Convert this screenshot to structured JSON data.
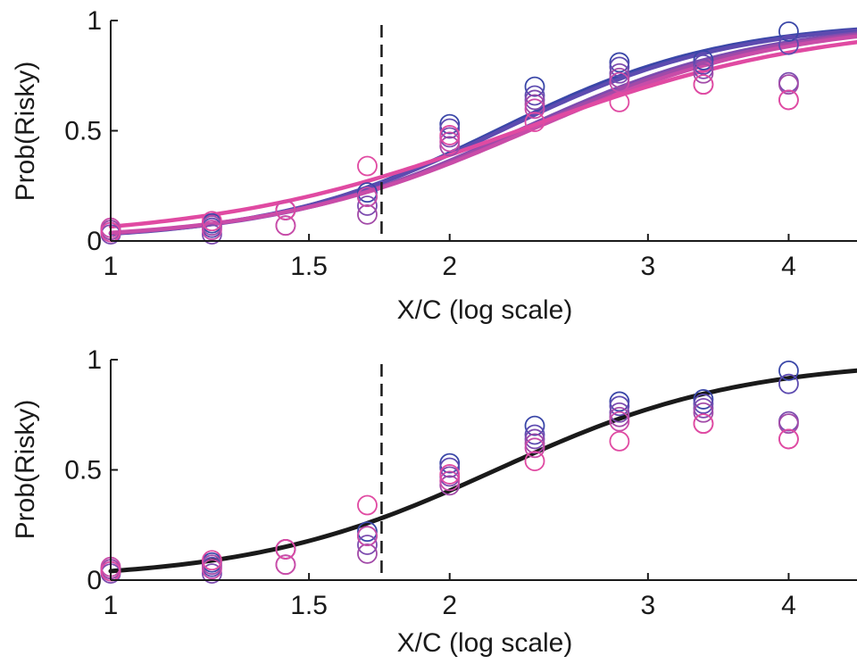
{
  "chart_data": [
    {
      "type": "line",
      "xscale": "log",
      "xlabel": "X/C (log scale)",
      "ylabel": "Prob(Risky)",
      "xlim": [
        1,
        4.6
      ],
      "ylim": [
        0,
        1
      ],
      "xticks": [
        1,
        1.5,
        2,
        3,
        4
      ],
      "xtick_labels": [
        "1",
        "1.5",
        "2",
        "3",
        "4"
      ],
      "yticks": [
        0,
        0.5,
        1
      ],
      "ytick_labels": [
        "0",
        "0.5",
        "1"
      ],
      "reference_line_x": 1.74,
      "x": [
        1,
        1.23,
        1.43,
        1.69,
        2,
        2.38,
        2.83,
        3.36,
        4
      ],
      "series": [
        {
          "color": "#3a47a8",
          "y": [
            0.05,
            0.08,
            0.14,
            0.22,
            0.53,
            0.7,
            0.81,
            0.82,
            0.95
          ],
          "fit": {
            "mu": 2.2,
            "beta": 4.3
          }
        },
        {
          "color": "#5d4bb0",
          "y": [
            0.04,
            0.06,
            0.14,
            0.2,
            0.51,
            0.66,
            0.79,
            0.8,
            0.89
          ],
          "fit": {
            "mu": 2.22,
            "beta": 4.2
          }
        },
        {
          "color": "#7d4caf",
          "y": [
            0.03,
            0.03,
            0.14,
            0.16,
            0.47,
            0.64,
            0.76,
            0.78,
            0.72
          ],
          "fit": {
            "mu": 2.3,
            "beta": 4.0
          }
        },
        {
          "color": "#a24aa8",
          "y": [
            0.05,
            0.07,
            0.07,
            0.12,
            0.43,
            0.62,
            0.74,
            0.76,
            0.71
          ],
          "fit": {
            "mu": 2.32,
            "beta": 3.9
          }
        },
        {
          "color": "#c94ca8",
          "y": [
            0.06,
            0.05,
            0.07,
            0.2,
            0.45,
            0.6,
            0.72,
            0.71,
            0.64
          ],
          "fit": {
            "mu": 2.35,
            "beta": 3.8
          }
        },
        {
          "color": "#e04aa2",
          "y": [
            0.04,
            0.09,
            0.14,
            0.34,
            0.48,
            0.54,
            0.63,
            0.71,
            0.64
          ],
          "fit": {
            "mu": 2.3,
            "beta": 3.2
          }
        }
      ]
    },
    {
      "type": "line",
      "xscale": "log",
      "xlabel": "X/C (log scale)",
      "ylabel": "Prob(Risky)",
      "xlim": [
        1,
        4.6
      ],
      "ylim": [
        0,
        1
      ],
      "xticks": [
        1,
        1.5,
        2,
        3,
        4
      ],
      "xtick_labels": [
        "1",
        "1.5",
        "2",
        "3",
        "4"
      ],
      "yticks": [
        0,
        0.5,
        1
      ],
      "ytick_labels": [
        "0",
        "0.5",
        "1"
      ],
      "reference_line_x": 1.74,
      "x": [
        1,
        1.23,
        1.43,
        1.69,
        2,
        2.38,
        2.83,
        3.36,
        4
      ],
      "series": [
        {
          "color": "#3a47a8",
          "y": [
            0.05,
            0.08,
            0.14,
            0.22,
            0.53,
            0.7,
            0.81,
            0.82,
            0.95
          ]
        },
        {
          "color": "#5d4bb0",
          "y": [
            0.04,
            0.06,
            0.14,
            0.2,
            0.51,
            0.66,
            0.79,
            0.8,
            0.89
          ]
        },
        {
          "color": "#7d4caf",
          "y": [
            0.03,
            0.03,
            0.14,
            0.16,
            0.47,
            0.64,
            0.76,
            0.78,
            0.72
          ]
        },
        {
          "color": "#a24aa8",
          "y": [
            0.05,
            0.07,
            0.07,
            0.12,
            0.43,
            0.62,
            0.74,
            0.76,
            0.71
          ]
        },
        {
          "color": "#c94ca8",
          "y": [
            0.06,
            0.05,
            0.07,
            0.2,
            0.45,
            0.6,
            0.72,
            0.71,
            0.64
          ]
        },
        {
          "color": "#e04aa2",
          "y": [
            0.04,
            0.09,
            0.14,
            0.34,
            0.48,
            0.54,
            0.63,
            0.71,
            0.64
          ]
        }
      ],
      "pooled_fit": {
        "color": "#1a1a1a",
        "mu": 2.2,
        "beta": 4.0
      }
    }
  ]
}
